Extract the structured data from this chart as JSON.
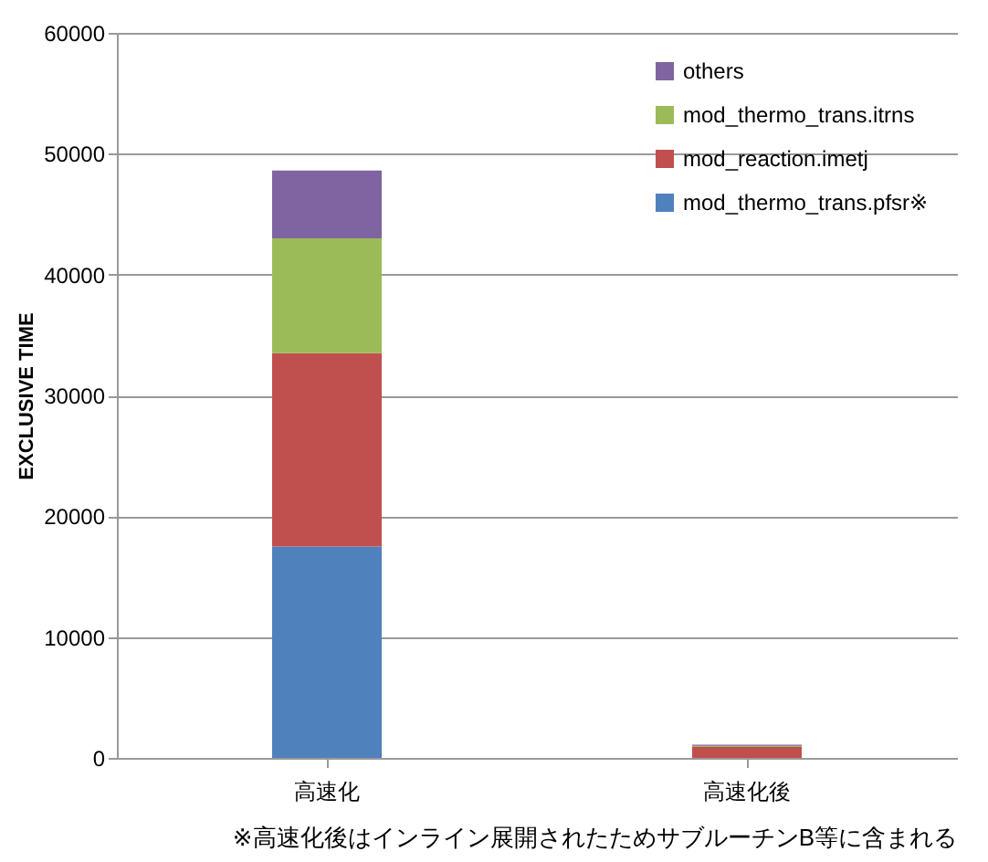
{
  "chart_data": {
    "type": "bar",
    "stacked": true,
    "ylabel": "EXCLUSIVE TIME",
    "categories": [
      "高速化",
      "高速化後"
    ],
    "series": [
      {
        "name": "mod_thermo_trans.pfsr※",
        "color": "#4f81bd",
        "values": [
          17500,
          0
        ]
      },
      {
        "name": "mod_reaction.imetj",
        "color": "#c0504d",
        "values": [
          16000,
          900
        ]
      },
      {
        "name": "mod_thermo_trans.itrns",
        "color": "#9bbb59",
        "values": [
          9500,
          100
        ]
      },
      {
        "name": "others",
        "color": "#8064a2",
        "values": [
          5600,
          100
        ]
      }
    ],
    "ylim": [
      0,
      60000
    ],
    "yticks": [
      0,
      10000,
      20000,
      30000,
      40000,
      50000,
      60000
    ],
    "grid": "y",
    "legend": "top right",
    "annotations": [
      "※高速化後はインライン展開されたためサブルーチンB等に含まれる"
    ]
  }
}
